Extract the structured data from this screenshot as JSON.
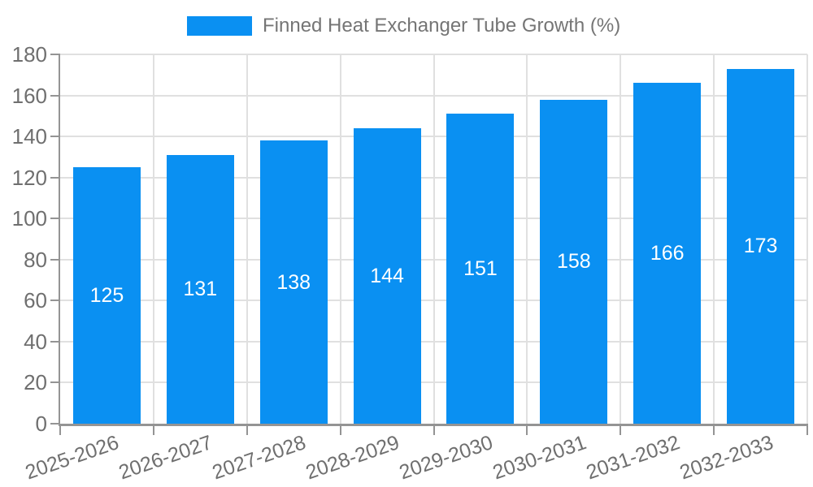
{
  "legend": {
    "label": "Finned Heat Exchanger Tube Growth (%)"
  },
  "chart_data": {
    "type": "bar",
    "title": "Finned Heat Exchanger Tube Growth (%)",
    "categories": [
      "2025-2026",
      "2026-2027",
      "2027-2028",
      "2028-2029",
      "2029-2030",
      "2030-2031",
      "2031-2032",
      "2032-2033"
    ],
    "values": [
      125,
      131,
      138,
      144,
      151,
      158,
      166,
      173
    ],
    "series": [
      {
        "name": "Finned Heat Exchanger Tube Growth (%)",
        "values": [
          125,
          131,
          138,
          144,
          151,
          158,
          166,
          173
        ]
      }
    ],
    "xlabel": "",
    "ylabel": "",
    "ylim": [
      0,
      180
    ],
    "yticks": [
      0,
      20,
      40,
      60,
      80,
      100,
      120,
      140,
      160,
      180
    ],
    "grid": true,
    "legend_position": "top-center",
    "bar_labels_inside": true,
    "colors": {
      "bar": "#0a90f2",
      "bar_label": "#ffffff",
      "axis": "#949494",
      "grid": "#e0e0e0",
      "tick_text": "#6f6f6f",
      "legend_text": "#757575",
      "background": "#ffffff"
    }
  }
}
